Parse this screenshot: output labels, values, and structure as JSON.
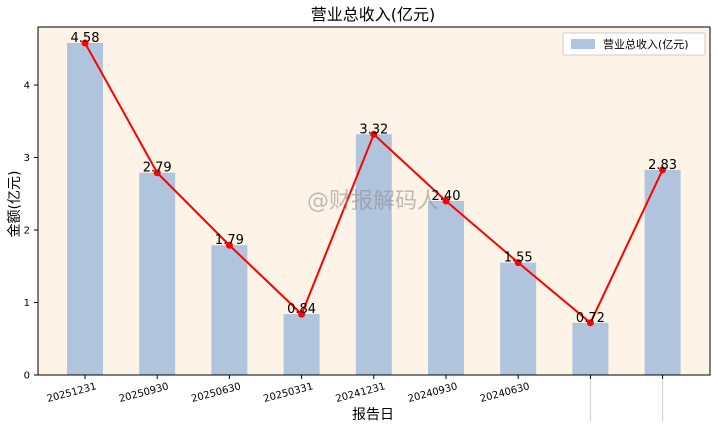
{
  "chart_data": {
    "type": "bar",
    "title": "营业总收入(亿元)",
    "xlabel": "报告日",
    "ylabel": "金额(亿元)",
    "categories": [
      "20251231",
      "20250930",
      "20250630",
      "20250331",
      "20241231",
      "20240930",
      "20240630",
      "",
      ""
    ],
    "series": [
      {
        "name": "营业总收入(亿元)",
        "type": "bar",
        "values": [
          4.58,
          2.79,
          1.79,
          0.84,
          3.32,
          2.4,
          1.55,
          0.72,
          2.83
        ],
        "color": "#b0c4de"
      },
      {
        "type": "line",
        "values": [
          4.58,
          2.79,
          1.79,
          0.84,
          3.32,
          2.4,
          1.55,
          0.72,
          2.83
        ],
        "color": "#ff0000"
      }
    ],
    "data_labels": [
      "4.58",
      "2.79",
      "1.79",
      "0.84",
      "3.32",
      "2.40",
      "1.55",
      "0.72",
      "2.83"
    ],
    "yticks": [
      "0",
      "1",
      "2",
      "3",
      "4"
    ],
    "ylim": [
      0,
      4.8
    ],
    "legend": {
      "entry": "营业总收入(亿元)",
      "position": "top-right"
    },
    "watermark": "@财报解码人",
    "plot_background": "#fdf3e6",
    "grid": false
  }
}
